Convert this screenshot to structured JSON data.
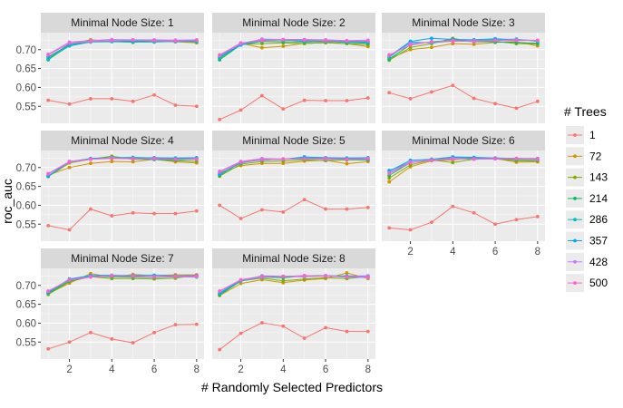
{
  "chart_data": {
    "type": "line",
    "facet_label": "Minimal Node Size",
    "xlabel": "# Randomly Selected Predictors",
    "ylabel": "roc_auc",
    "legend_title": "# Trees",
    "legend_position": "right",
    "x": [
      1,
      2,
      3,
      4,
      5,
      6,
      7,
      8
    ],
    "xlim": [
      0.65,
      8.35
    ],
    "ylim": [
      0.505,
      0.745
    ],
    "x_ticks": [
      2,
      4,
      6,
      8
    ],
    "y_ticks": [
      0.55,
      0.6,
      0.65,
      0.7
    ],
    "y_tick_labels": [
      "0.55",
      "0.60",
      "0.65",
      "0.70"
    ],
    "grid": true,
    "series_meta": [
      {
        "name": "1",
        "color": "#F8766D"
      },
      {
        "name": "72",
        "color": "#CD9600"
      },
      {
        "name": "143",
        "color": "#7CAE00"
      },
      {
        "name": "214",
        "color": "#00BE67"
      },
      {
        "name": "286",
        "color": "#00BFC4"
      },
      {
        "name": "357",
        "color": "#00A9FF"
      },
      {
        "name": "428",
        "color": "#C77CFF"
      },
      {
        "name": "500",
        "color": "#FF61CC"
      }
    ],
    "panels": [
      {
        "title": "Minimal Node Size: 1",
        "series": [
          [
            0.566,
            0.556,
            0.57,
            0.57,
            0.563,
            0.58,
            0.553,
            0.55
          ],
          [
            0.68,
            0.71,
            0.722,
            0.724,
            0.72,
            0.724,
            0.721,
            0.718
          ],
          [
            0.676,
            0.716,
            0.726,
            0.722,
            0.719,
            0.725,
            0.724,
            0.72
          ],
          [
            0.673,
            0.712,
            0.721,
            0.722,
            0.722,
            0.723,
            0.721,
            0.722
          ],
          [
            0.675,
            0.71,
            0.72,
            0.721,
            0.72,
            0.72,
            0.722,
            0.721
          ],
          [
            0.681,
            0.713,
            0.723,
            0.724,
            0.723,
            0.724,
            0.722,
            0.724
          ],
          [
            0.688,
            0.72,
            0.724,
            0.727,
            0.726,
            0.726,
            0.725,
            0.726
          ],
          [
            0.686,
            0.717,
            0.722,
            0.724,
            0.725,
            0.724,
            0.723,
            0.725
          ]
        ]
      },
      {
        "title": "Minimal Node Size: 2",
        "series": [
          [
            0.515,
            0.54,
            0.578,
            0.543,
            0.566,
            0.565,
            0.565,
            0.572
          ],
          [
            0.68,
            0.717,
            0.705,
            0.709,
            0.717,
            0.718,
            0.716,
            0.708
          ],
          [
            0.676,
            0.714,
            0.716,
            0.718,
            0.716,
            0.719,
            0.716,
            0.713
          ],
          [
            0.673,
            0.713,
            0.722,
            0.721,
            0.72,
            0.722,
            0.719,
            0.717
          ],
          [
            0.678,
            0.714,
            0.724,
            0.726,
            0.722,
            0.722,
            0.72,
            0.719
          ],
          [
            0.682,
            0.712,
            0.726,
            0.725,
            0.724,
            0.723,
            0.722,
            0.721
          ],
          [
            0.684,
            0.716,
            0.728,
            0.727,
            0.727,
            0.726,
            0.724,
            0.725
          ],
          [
            0.686,
            0.718,
            0.724,
            0.726,
            0.725,
            0.724,
            0.723,
            0.723
          ]
        ]
      },
      {
        "title": "Minimal Node Size: 3",
        "series": [
          [
            0.586,
            0.57,
            0.588,
            0.605,
            0.571,
            0.557,
            0.545,
            0.563
          ],
          [
            0.676,
            0.7,
            0.706,
            0.716,
            0.714,
            0.719,
            0.721,
            0.71
          ],
          [
            0.672,
            0.706,
            0.716,
            0.73,
            0.72,
            0.722,
            0.716,
            0.715
          ],
          [
            0.675,
            0.713,
            0.721,
            0.725,
            0.723,
            0.72,
            0.719,
            0.717
          ],
          [
            0.68,
            0.72,
            0.718,
            0.723,
            0.724,
            0.726,
            0.728,
            0.722
          ],
          [
            0.682,
            0.722,
            0.73,
            0.727,
            0.726,
            0.729,
            0.726,
            0.724
          ],
          [
            0.684,
            0.716,
            0.72,
            0.724,
            0.721,
            0.725,
            0.726,
            0.724
          ],
          [
            0.686,
            0.712,
            0.721,
            0.722,
            0.723,
            0.724,
            0.724,
            0.725
          ]
        ]
      },
      {
        "title": "Minimal Node Size: 4",
        "series": [
          [
            0.546,
            0.535,
            0.59,
            0.572,
            0.58,
            0.578,
            0.578,
            0.585
          ],
          [
            0.68,
            0.7,
            0.711,
            0.716,
            0.715,
            0.722,
            0.715,
            0.712
          ],
          [
            0.676,
            0.712,
            0.722,
            0.73,
            0.722,
            0.722,
            0.718,
            0.716
          ],
          [
            0.677,
            0.716,
            0.723,
            0.725,
            0.723,
            0.721,
            0.72,
            0.722
          ],
          [
            0.678,
            0.714,
            0.722,
            0.726,
            0.727,
            0.725,
            0.724,
            0.725
          ],
          [
            0.677,
            0.715,
            0.724,
            0.726,
            0.725,
            0.726,
            0.725,
            0.726
          ],
          [
            0.684,
            0.716,
            0.722,
            0.725,
            0.723,
            0.724,
            0.722,
            0.723
          ],
          [
            0.683,
            0.714,
            0.722,
            0.724,
            0.724,
            0.723,
            0.722,
            0.722
          ]
        ]
      },
      {
        "title": "Minimal Node Size: 5",
        "series": [
          [
            0.6,
            0.565,
            0.588,
            0.582,
            0.615,
            0.59,
            0.59,
            0.594
          ],
          [
            0.686,
            0.705,
            0.711,
            0.711,
            0.717,
            0.719,
            0.71,
            0.716
          ],
          [
            0.677,
            0.709,
            0.716,
            0.717,
            0.72,
            0.718,
            0.72,
            0.72
          ],
          [
            0.679,
            0.715,
            0.72,
            0.722,
            0.724,
            0.722,
            0.722,
            0.72
          ],
          [
            0.683,
            0.712,
            0.722,
            0.722,
            0.725,
            0.725,
            0.724,
            0.724
          ],
          [
            0.682,
            0.713,
            0.72,
            0.722,
            0.728,
            0.726,
            0.725,
            0.726
          ],
          [
            0.69,
            0.716,
            0.724,
            0.723,
            0.723,
            0.722,
            0.722,
            0.724
          ],
          [
            0.688,
            0.714,
            0.721,
            0.722,
            0.723,
            0.724,
            0.722,
            0.723
          ]
        ]
      },
      {
        "title": "Minimal Node Size: 6",
        "series": [
          [
            0.54,
            0.535,
            0.555,
            0.597,
            0.58,
            0.55,
            0.562,
            0.57
          ],
          [
            0.662,
            0.702,
            0.718,
            0.72,
            0.726,
            0.724,
            0.714,
            0.715
          ],
          [
            0.672,
            0.707,
            0.72,
            0.713,
            0.722,
            0.723,
            0.718,
            0.717
          ],
          [
            0.679,
            0.713,
            0.721,
            0.727,
            0.726,
            0.723,
            0.721,
            0.72
          ],
          [
            0.692,
            0.714,
            0.719,
            0.724,
            0.724,
            0.725,
            0.724,
            0.724
          ],
          [
            0.69,
            0.719,
            0.722,
            0.728,
            0.727,
            0.725,
            0.724,
            0.722
          ],
          [
            0.686,
            0.715,
            0.72,
            0.724,
            0.722,
            0.723,
            0.723,
            0.721
          ],
          [
            0.684,
            0.713,
            0.719,
            0.722,
            0.723,
            0.724,
            0.724,
            0.723
          ]
        ]
      },
      {
        "title": "Minimal Node Size: 7",
        "series": [
          [
            0.532,
            0.55,
            0.575,
            0.558,
            0.548,
            0.575,
            0.596,
            0.597
          ],
          [
            0.678,
            0.706,
            0.731,
            0.722,
            0.729,
            0.726,
            0.728,
            0.728
          ],
          [
            0.676,
            0.71,
            0.723,
            0.718,
            0.718,
            0.717,
            0.719,
            0.727
          ],
          [
            0.679,
            0.712,
            0.724,
            0.723,
            0.722,
            0.721,
            0.723,
            0.722
          ],
          [
            0.68,
            0.715,
            0.725,
            0.724,
            0.724,
            0.722,
            0.724,
            0.723
          ],
          [
            0.682,
            0.717,
            0.726,
            0.727,
            0.726,
            0.727,
            0.725,
            0.726
          ],
          [
            0.685,
            0.714,
            0.722,
            0.726,
            0.724,
            0.722,
            0.723,
            0.723
          ],
          [
            0.684,
            0.715,
            0.723,
            0.725,
            0.725,
            0.723,
            0.724,
            0.725
          ]
        ]
      },
      {
        "title": "Minimal Node Size: 8",
        "series": [
          [
            0.53,
            0.573,
            0.601,
            0.592,
            0.56,
            0.588,
            0.578,
            0.578
          ],
          [
            0.673,
            0.705,
            0.715,
            0.707,
            0.714,
            0.718,
            0.733,
            0.718
          ],
          [
            0.674,
            0.712,
            0.719,
            0.712,
            0.717,
            0.72,
            0.718,
            0.723
          ],
          [
            0.676,
            0.712,
            0.722,
            0.72,
            0.725,
            0.726,
            0.722,
            0.721
          ],
          [
            0.678,
            0.712,
            0.721,
            0.724,
            0.723,
            0.725,
            0.725,
            0.724
          ],
          [
            0.68,
            0.713,
            0.725,
            0.724,
            0.724,
            0.725,
            0.724,
            0.725
          ],
          [
            0.684,
            0.714,
            0.722,
            0.724,
            0.723,
            0.726,
            0.722,
            0.721
          ],
          [
            0.685,
            0.715,
            0.724,
            0.723,
            0.726,
            0.724,
            0.723,
            0.724
          ]
        ]
      }
    ]
  }
}
